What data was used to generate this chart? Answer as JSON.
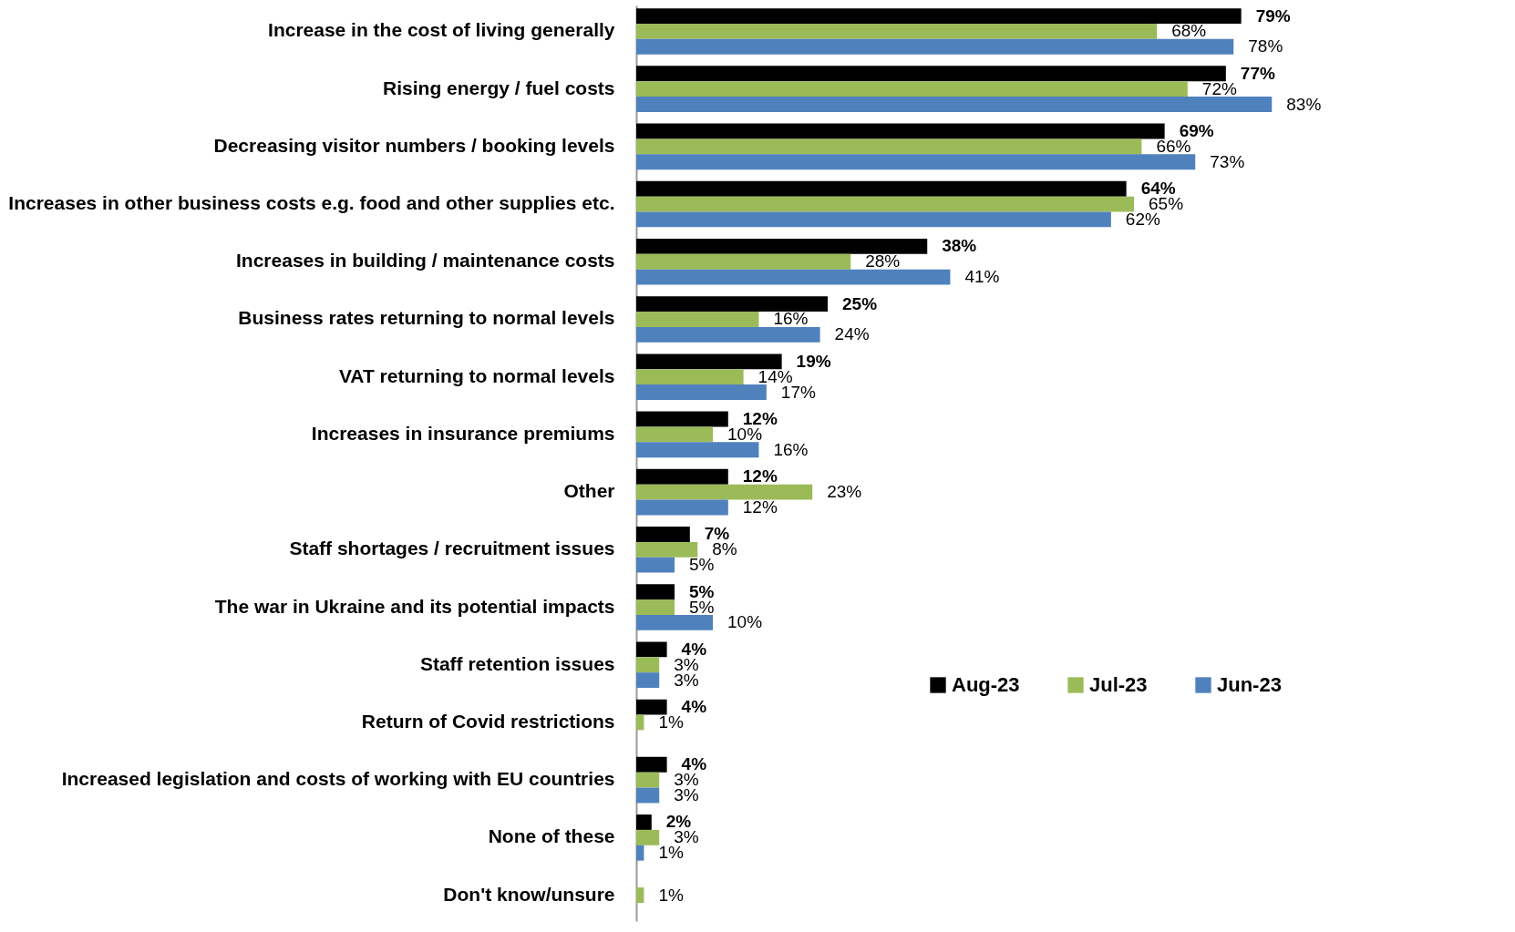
{
  "chart_data": {
    "type": "bar",
    "orientation": "horizontal",
    "categories": [
      "Increase in the cost of living generally",
      "Rising energy / fuel costs",
      "Decreasing visitor numbers / booking levels",
      "Increases in other business costs e.g. food and other supplies etc.",
      "Increases in building / maintenance costs",
      "Business rates returning to normal levels",
      "VAT returning to normal levels",
      "Increases in insurance premiums",
      "Other",
      "Staff shortages / recruitment issues",
      "The war in Ukraine and its potential impacts",
      "Staff retention issues",
      "Return of Covid restrictions",
      "Increased legislation and costs of working with EU countries",
      "None of these",
      "Don't know/unsure"
    ],
    "series": [
      {
        "name": "Aug-23",
        "color": "#000000",
        "values": [
          79,
          77,
          69,
          64,
          38,
          25,
          19,
          12,
          12,
          7,
          5,
          4,
          4,
          4,
          2,
          null
        ],
        "value_labels": [
          "79%",
          "77%",
          "69%",
          "64%",
          "38%",
          "25%",
          "19%",
          "12%",
          "12%",
          "7%",
          "5%",
          "4%",
          "4%",
          "4%",
          "2%",
          null
        ]
      },
      {
        "name": "Jul-23",
        "color": "#9bbb59",
        "values": [
          68,
          72,
          66,
          65,
          28,
          16,
          14,
          10,
          23,
          8,
          5,
          3,
          1,
          3,
          3,
          1
        ],
        "value_labels": [
          "68%",
          "72%",
          "66%",
          "65%",
          "28%",
          "16%",
          "14%",
          "10%",
          "23%",
          "8%",
          "5%",
          "3%",
          "1%",
          "3%",
          "3%",
          "1%"
        ]
      },
      {
        "name": "Jun-23",
        "color": "#4f81bd",
        "values": [
          78,
          83,
          73,
          62,
          41,
          24,
          17,
          16,
          12,
          5,
          10,
          3,
          null,
          3,
          1,
          null
        ],
        "value_labels": [
          "78%",
          "83%",
          "73%",
          "62%",
          "41%",
          "24%",
          "17%",
          "16%",
          "12%",
          "5%",
          "10%",
          "3%",
          null,
          "3%",
          "1%",
          null
        ]
      }
    ],
    "legend": "right",
    "tick_labels": "y"
  }
}
